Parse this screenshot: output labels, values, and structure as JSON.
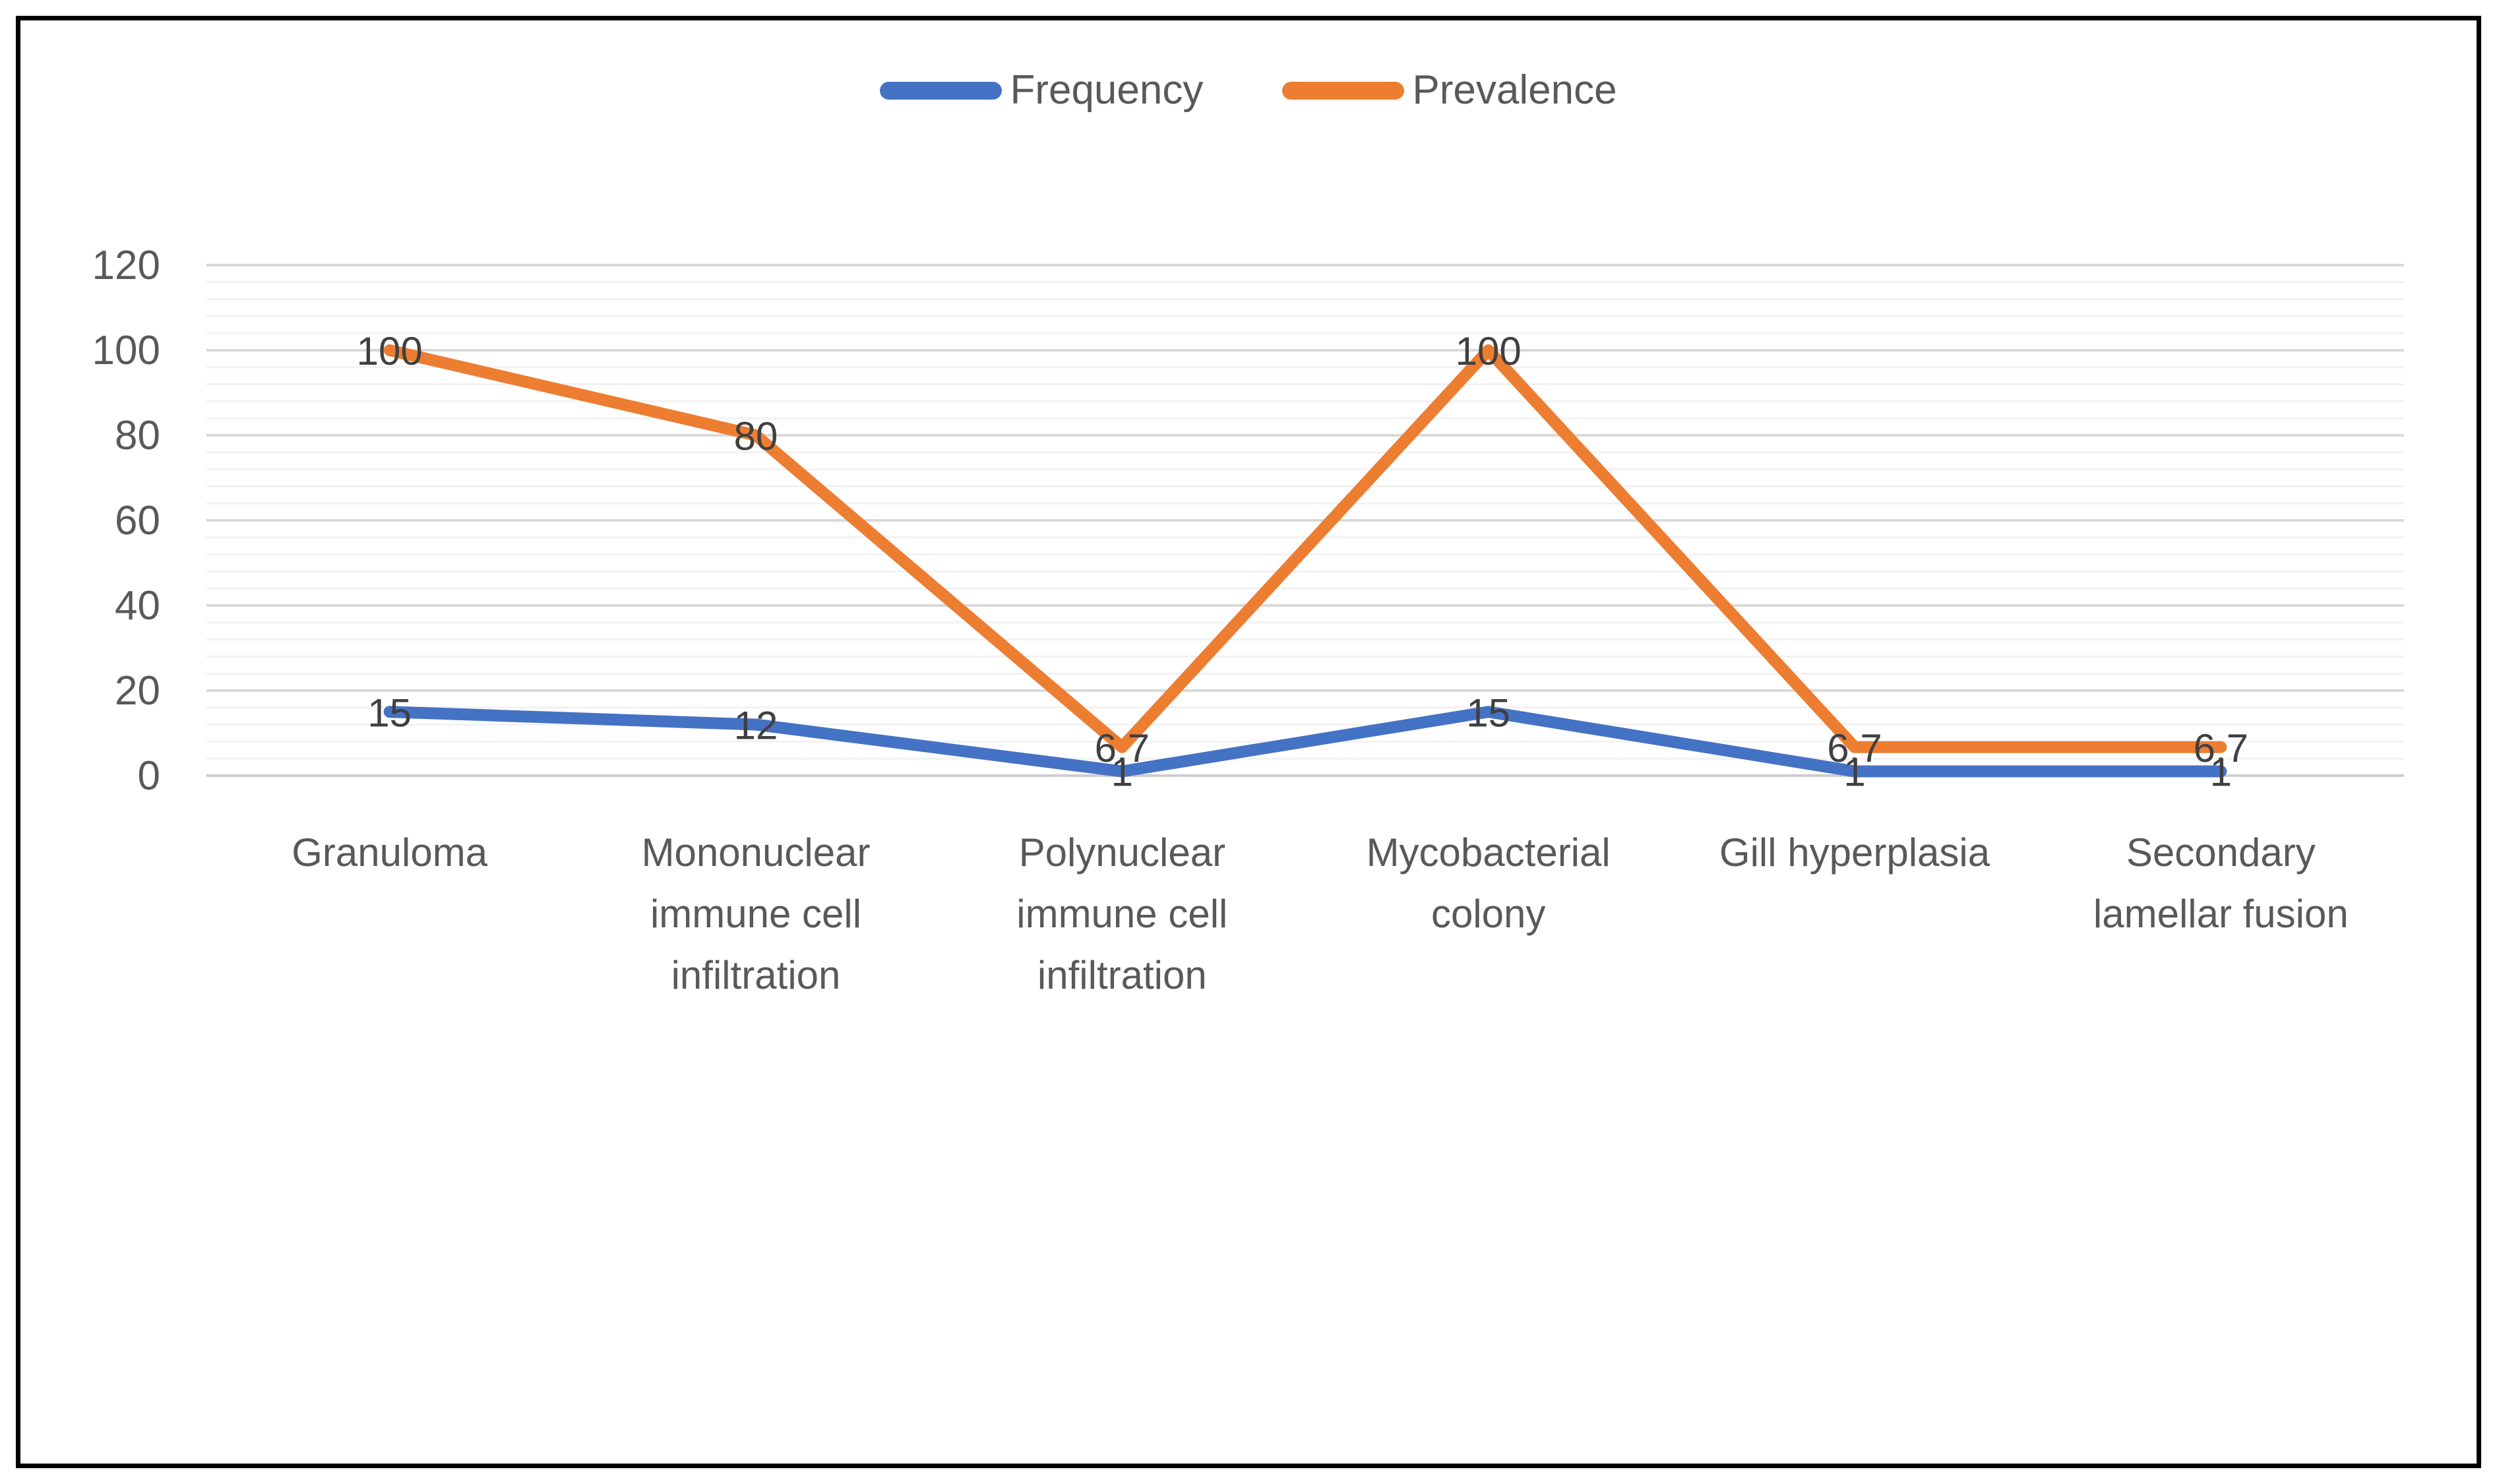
{
  "frame": {
    "background_color": "#FFFFFF",
    "border_color": "#000000"
  },
  "legend": {
    "position": "top-center",
    "items": [
      {
        "label": "Frequency",
        "color": "#4472C4"
      },
      {
        "label": "Prevalence",
        "color": "#ED7D31"
      }
    ]
  },
  "chart_data": {
    "type": "line",
    "title": "",
    "xlabel": "",
    "ylabel": "",
    "categories": [
      "Granuloma",
      "Mononuclear immune cell infiltration",
      "Polynuclear immune cell infiltration",
      "Mycobacterial colony",
      "Gill hyperplasia",
      "Secondary lamellar fusion"
    ],
    "series": [
      {
        "name": "Frequency",
        "color": "#4472C4",
        "values": [
          15,
          12,
          1,
          15,
          1,
          1
        ],
        "labels": [
          "15",
          "12",
          "1",
          "15",
          "1",
          "1"
        ]
      },
      {
        "name": "Prevalence",
        "color": "#ED7D31",
        "values": [
          100,
          80,
          6.7,
          100,
          6.7,
          6.7
        ],
        "labels": [
          "100",
          "80",
          "6.7",
          "100",
          "6.7",
          "6.7"
        ]
      }
    ],
    "ylim": [
      0,
      120
    ],
    "y_major_ticks": [
      0,
      20,
      40,
      60,
      80,
      100,
      120
    ],
    "y_minor_unit": 4,
    "grid": true,
    "data_labels": true,
    "legend_position": "top",
    "colors": {
      "major_grid": "#D9D9D9",
      "minor_grid": "#F2F2F2",
      "tick_text": "#595959",
      "category_text": "#595959",
      "data_label_text": "#404040"
    }
  }
}
